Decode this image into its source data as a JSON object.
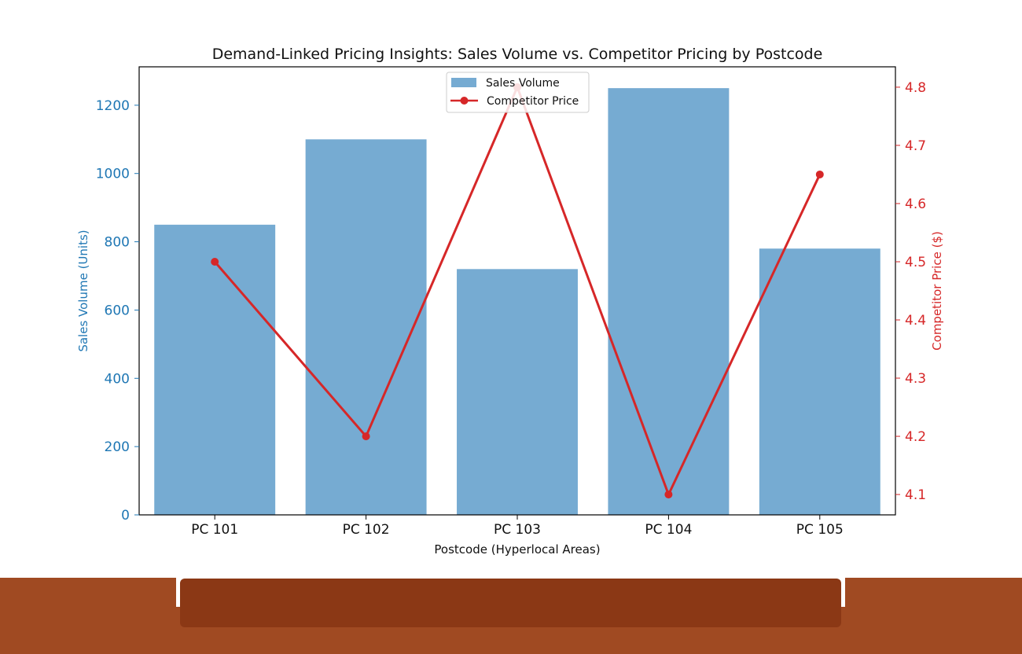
{
  "colors": {
    "bar": "#76abd2",
    "line": "#d62728",
    "left_axis": "#1f77b4",
    "right_axis": "#d62728",
    "footer": "#a04a22",
    "footer_bar": "#8b3815"
  },
  "chart_data": {
    "type": "bar",
    "title": "Demand-Linked Pricing Insights: Sales Volume vs. Competitor Pricing by Postcode",
    "xlabel": "Postcode (Hyperlocal Areas)",
    "ylabel": "Sales Volume (Units)",
    "y2label": "Competitor Price ($)",
    "categories": [
      "PC 101",
      "PC 102",
      "PC 103",
      "PC 104",
      "PC 105"
    ],
    "series": [
      {
        "name": "Sales Volume",
        "type": "bar",
        "axis": "left",
        "values": [
          850,
          1100,
          720,
          1250,
          780
        ]
      },
      {
        "name": "Competitor Price",
        "type": "line",
        "axis": "right",
        "values": [
          4.5,
          4.2,
          4.8,
          4.1,
          4.65
        ]
      }
    ],
    "ylim": [
      0,
      1312.5
    ],
    "y2lim": [
      4.065,
      4.835
    ],
    "yticks": [
      "0",
      "200",
      "400",
      "600",
      "800",
      "1000",
      "1200"
    ],
    "y2ticks": [
      "4.1",
      "4.2",
      "4.3",
      "4.4",
      "4.5",
      "4.6",
      "4.7",
      "4.8"
    ],
    "legend": "top-center",
    "grid": false
  }
}
